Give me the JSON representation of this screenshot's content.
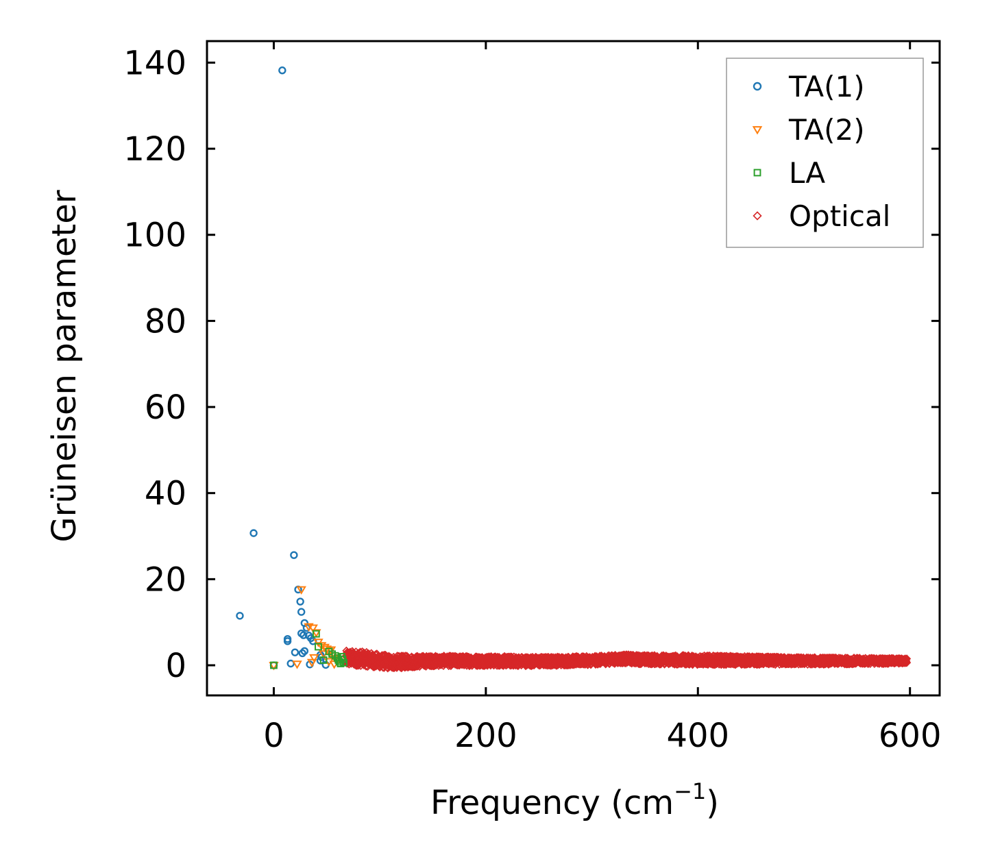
{
  "chart_data": {
    "type": "scatter",
    "xlabel": "Frequency (cm⁻¹)",
    "xlabel_main": "Frequency (cm",
    "xlabel_sup": "−1",
    "xlabel_close": ")",
    "ylabel": "Grüneisen parameter",
    "xlim": [
      -63,
      628
    ],
    "ylim": [
      -7,
      145
    ],
    "xticks": [
      0,
      200,
      400,
      600
    ],
    "yticks": [
      0,
      20,
      40,
      60,
      80,
      100,
      120,
      140
    ],
    "legend_position": "top-right",
    "grid": false,
    "series": [
      {
        "name": "TA(1)",
        "marker": "circle",
        "color": "#1f77b4",
        "points": [
          [
            -32,
            11.5
          ],
          [
            -19,
            30.7
          ],
          [
            8,
            138.2
          ],
          [
            19,
            25.6
          ],
          [
            23,
            17.6
          ],
          [
            25,
            14.8
          ],
          [
            26,
            12.4
          ],
          [
            29,
            9.8
          ],
          [
            31,
            8.7
          ],
          [
            26,
            7.4
          ],
          [
            28,
            7.0
          ],
          [
            33,
            6.9
          ],
          [
            35,
            6.3
          ],
          [
            37,
            5.6
          ],
          [
            13,
            6.1
          ],
          [
            13,
            5.6
          ],
          [
            20,
            3.0
          ],
          [
            29,
            3.3
          ],
          [
            27,
            2.8
          ],
          [
            44,
            2.4
          ],
          [
            45,
            1.9
          ],
          [
            44,
            1.1
          ],
          [
            16,
            0.4
          ],
          [
            34,
            0.2
          ],
          [
            49,
            0.1
          ],
          [
            0,
            0.0
          ]
        ]
      },
      {
        "name": "TA(2)",
        "marker": "triangle-down",
        "color": "#ff7f0e",
        "points": [
          [
            26,
            17.6
          ],
          [
            33,
            9.0
          ],
          [
            37,
            8.7
          ],
          [
            40,
            7.6
          ],
          [
            42,
            5.4
          ],
          [
            45,
            4.6
          ],
          [
            48,
            4.2
          ],
          [
            50,
            3.8
          ],
          [
            52,
            3.2
          ],
          [
            54,
            3.6
          ],
          [
            47,
            2.7
          ],
          [
            55,
            2.2
          ],
          [
            58,
            1.6
          ],
          [
            60,
            1.1
          ],
          [
            38,
            1.8
          ],
          [
            36,
            0.7
          ],
          [
            22,
            0.3
          ],
          [
            52,
            0.9
          ],
          [
            57,
            0.3
          ],
          [
            0,
            0.0
          ]
        ]
      },
      {
        "name": "LA",
        "marker": "square",
        "color": "#2ca02c",
        "points": [
          [
            40,
            7.3
          ],
          [
            42,
            4.3
          ],
          [
            52,
            3.2
          ],
          [
            55,
            2.6
          ],
          [
            58,
            2.2
          ],
          [
            60,
            1.7
          ],
          [
            61,
            1.2
          ],
          [
            62,
            0.8
          ],
          [
            63,
            0.4
          ],
          [
            64,
            2.0
          ],
          [
            65,
            1.4
          ],
          [
            66,
            0.6
          ],
          [
            47,
            1.2
          ],
          [
            0,
            0.0
          ]
        ]
      },
      {
        "name": "Optical",
        "marker": "diamond",
        "color": "#d62728",
        "x_range": [
          68,
          597
        ],
        "band_center": [
          [
            68,
            1.6
          ],
          [
            80,
            1.6
          ],
          [
            100,
            1.0
          ],
          [
            110,
            0.7
          ],
          [
            150,
            1.0
          ],
          [
            200,
            1.0
          ],
          [
            250,
            0.9
          ],
          [
            300,
            1.1
          ],
          [
            330,
            1.5
          ],
          [
            350,
            1.3
          ],
          [
            400,
            1.2
          ],
          [
            450,
            1.1
          ],
          [
            500,
            1.0
          ],
          [
            550,
            1.0
          ],
          [
            597,
            1.0
          ]
        ],
        "band_halfwidth": [
          [
            68,
            1.8
          ],
          [
            100,
            1.6
          ],
          [
            150,
            1.2
          ],
          [
            300,
            1.0
          ],
          [
            400,
            1.1
          ],
          [
            597,
            0.6
          ]
        ],
        "outliers": [
          [
            72,
            3.0
          ],
          [
            74,
            2.6
          ],
          [
            95,
            -0.4
          ],
          [
            105,
            2.4
          ],
          [
            120,
            2.1
          ]
        ]
      }
    ]
  }
}
